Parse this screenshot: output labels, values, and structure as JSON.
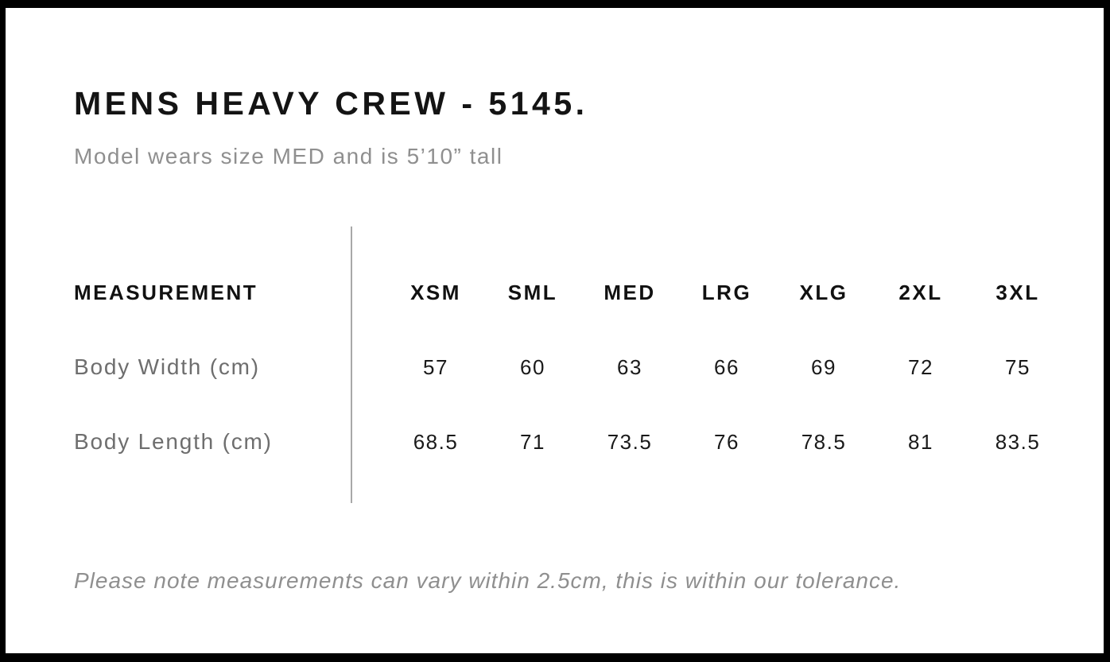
{
  "page": {
    "title": "MENS HEAVY CREW - 5145.",
    "subtitle": "Model wears size MED and is 5’10” tall",
    "tolerance_note": "Please note measurements can vary within 2.5cm, this is within our tolerance."
  },
  "size_chart": {
    "measurement_header": "MEASUREMENT",
    "sizes": [
      "XSM",
      "SML",
      "MED",
      "LRG",
      "XLG",
      "2XL",
      "3XL"
    ],
    "rows": [
      {
        "label": "Body Width (cm)",
        "values": [
          "57",
          "60",
          "63",
          "66",
          "69",
          "72",
          "75"
        ]
      },
      {
        "label": "Body Length (cm)",
        "values": [
          "68.5",
          "71",
          "73.5",
          "76",
          "78.5",
          "81",
          "83.5"
        ]
      }
    ]
  },
  "colors": {
    "frame": "#000000",
    "background": "#ffffff",
    "heading_text": "#141414",
    "muted_text": "#8f8f8f",
    "row_label_text": "#6e6e6e",
    "divider": "#a8a8a8"
  }
}
